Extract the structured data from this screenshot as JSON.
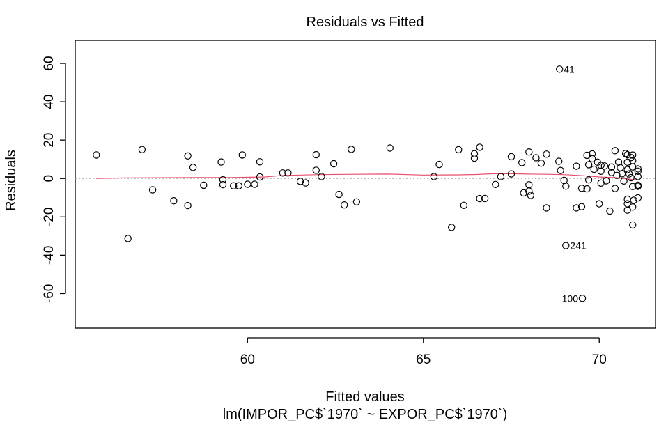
{
  "chart_data": {
    "type": "scatter",
    "title": "Residuals vs Fitted",
    "xlabel": "Fitted values",
    "subtitle": "lm(IMPOR_PC$`1970` ~ EXPOR_PC$`1970`)",
    "ylabel": "Residuals",
    "xlim": [
      55.1,
      71.6
    ],
    "ylim": [
      -78,
      72
    ],
    "xticks": [
      60,
      65,
      70
    ],
    "yticks": [
      -60,
      -40,
      -20,
      0,
      20,
      40,
      60
    ],
    "xtick_labels": [
      "60",
      "65",
      "70"
    ],
    "ytick_labels": [
      "-60",
      "-40",
      "-20",
      "0",
      "20",
      "40",
      "60"
    ],
    "reference_line_y": 0,
    "grid": false,
    "colors": {
      "points": "#000000",
      "smooth": "#e8506b",
      "reference": "#a0a0a0"
    },
    "labeled_points": [
      {
        "label": "41",
        "x": 68.87,
        "y": 57,
        "side": "right"
      },
      {
        "label": "241",
        "x": 69.05,
        "y": -35,
        "side": "right"
      },
      {
        "label": "100",
        "x": 69.52,
        "y": -62.5,
        "side": "left"
      }
    ],
    "points": [
      [
        55.7,
        12.3
      ],
      [
        56.6,
        -31.3
      ],
      [
        57.0,
        15.1
      ],
      [
        57.3,
        -5.9
      ],
      [
        57.9,
        -11.6
      ],
      [
        58.3,
        11.8
      ],
      [
        58.3,
        -14.1
      ],
      [
        58.45,
        5.8
      ],
      [
        58.75,
        -3.5
      ],
      [
        59.25,
        8.6
      ],
      [
        59.3,
        -3.2
      ],
      [
        59.3,
        -0.6
      ],
      [
        59.6,
        -3.8
      ],
      [
        59.75,
        -3.8
      ],
      [
        59.85,
        12.3
      ],
      [
        60.0,
        -3.0
      ],
      [
        60.2,
        -3.0
      ],
      [
        60.35,
        8.7
      ],
      [
        60.35,
        0.8
      ],
      [
        61.0,
        2.9
      ],
      [
        61.15,
        2.9
      ],
      [
        61.5,
        -1.5
      ],
      [
        61.65,
        -2.3
      ],
      [
        61.95,
        12.4
      ],
      [
        61.95,
        4.3
      ],
      [
        62.1,
        1.0
      ],
      [
        62.45,
        7.7
      ],
      [
        62.6,
        -8.3
      ],
      [
        62.75,
        -13.8
      ],
      [
        62.95,
        15.2
      ],
      [
        63.1,
        -12.2
      ],
      [
        64.05,
        15.9
      ],
      [
        65.3,
        1.0
      ],
      [
        65.45,
        7.3
      ],
      [
        65.8,
        -25.5
      ],
      [
        66.0,
        15.0
      ],
      [
        66.15,
        -14.0
      ],
      [
        66.45,
        10.6
      ],
      [
        66.45,
        12.9
      ],
      [
        66.6,
        16.3
      ],
      [
        66.6,
        -10.5
      ],
      [
        66.75,
        -10.4
      ],
      [
        67.05,
        -3.1
      ],
      [
        67.2,
        1.0
      ],
      [
        67.5,
        11.4
      ],
      [
        67.5,
        2.4
      ],
      [
        67.8,
        8.3
      ],
      [
        67.85,
        -7.5
      ],
      [
        68.0,
        13.8
      ],
      [
        68.0,
        -3.3
      ],
      [
        68.0,
        -6.6
      ],
      [
        68.05,
        -8.8
      ],
      [
        68.2,
        10.8
      ],
      [
        68.35,
        8.0
      ],
      [
        68.5,
        12.7
      ],
      [
        68.5,
        -15.3
      ],
      [
        68.85,
        9.0
      ],
      [
        68.87,
        57.0
      ],
      [
        68.9,
        4.2
      ],
      [
        69.0,
        -1.0
      ],
      [
        69.05,
        -35.0
      ],
      [
        69.05,
        -4.0
      ],
      [
        69.35,
        -15.3
      ],
      [
        69.35,
        6.4
      ],
      [
        69.5,
        -14.7
      ],
      [
        69.5,
        -5.1
      ],
      [
        69.52,
        -62.5
      ],
      [
        69.65,
        12.1
      ],
      [
        69.65,
        -5.4
      ],
      [
        69.7,
        7.2
      ],
      [
        69.7,
        -0.7
      ],
      [
        69.8,
        10.3
      ],
      [
        69.8,
        12.8
      ],
      [
        69.85,
        4.8
      ],
      [
        69.95,
        8.5
      ],
      [
        70.0,
        -13.2
      ],
      [
        70.05,
        6.8
      ],
      [
        70.05,
        3.8
      ],
      [
        70.05,
        -2.4
      ],
      [
        70.15,
        6.5
      ],
      [
        70.2,
        -1.2
      ],
      [
        70.3,
        -17.0
      ],
      [
        70.35,
        6.0
      ],
      [
        70.35,
        3.1
      ],
      [
        70.45,
        14.5
      ],
      [
        70.45,
        -5.2
      ],
      [
        70.5,
        1.6
      ],
      [
        70.55,
        8.6
      ],
      [
        70.6,
        5.6
      ],
      [
        70.65,
        2.5
      ],
      [
        70.7,
        -1.3
      ],
      [
        70.75,
        13.0
      ],
      [
        70.8,
        12.4
      ],
      [
        70.8,
        8.5
      ],
      [
        70.8,
        4.6
      ],
      [
        70.8,
        -10.8
      ],
      [
        70.8,
        -13.2
      ],
      [
        70.8,
        -16.5
      ],
      [
        70.85,
        2.4
      ],
      [
        70.9,
        10.9
      ],
      [
        70.9,
        0.5
      ],
      [
        70.95,
        12.2
      ],
      [
        70.95,
        9.3
      ],
      [
        70.95,
        6.0
      ],
      [
        70.95,
        -4.2
      ],
      [
        70.95,
        -14.9
      ],
      [
        70.95,
        -24.2
      ],
      [
        70.98,
        -11.3
      ],
      [
        71.1,
        5.0
      ],
      [
        71.1,
        3.8
      ],
      [
        71.1,
        1.0
      ],
      [
        71.1,
        -3.5
      ],
      [
        71.1,
        -4.1
      ],
      [
        71.1,
        -10.1
      ]
    ],
    "smooth_line": [
      [
        55.7,
        0.0
      ],
      [
        56.5,
        0.3
      ],
      [
        57.5,
        0.4
      ],
      [
        58.5,
        0.5
      ],
      [
        59.5,
        0.5
      ],
      [
        60.5,
        0.8
      ],
      [
        61.0,
        1.6
      ],
      [
        61.5,
        1.8
      ],
      [
        62.0,
        2.0
      ],
      [
        63.0,
        2.2
      ],
      [
        64.0,
        2.3
      ],
      [
        65.0,
        1.8
      ],
      [
        66.0,
        1.9
      ],
      [
        66.5,
        2.1
      ],
      [
        67.0,
        2.5
      ],
      [
        67.5,
        2.5
      ],
      [
        68.0,
        2.3
      ],
      [
        68.5,
        2.2
      ],
      [
        69.0,
        2.0
      ],
      [
        69.5,
        1.5
      ],
      [
        70.0,
        0.8
      ],
      [
        70.5,
        0.4
      ],
      [
        71.1,
        -0.9
      ]
    ]
  }
}
